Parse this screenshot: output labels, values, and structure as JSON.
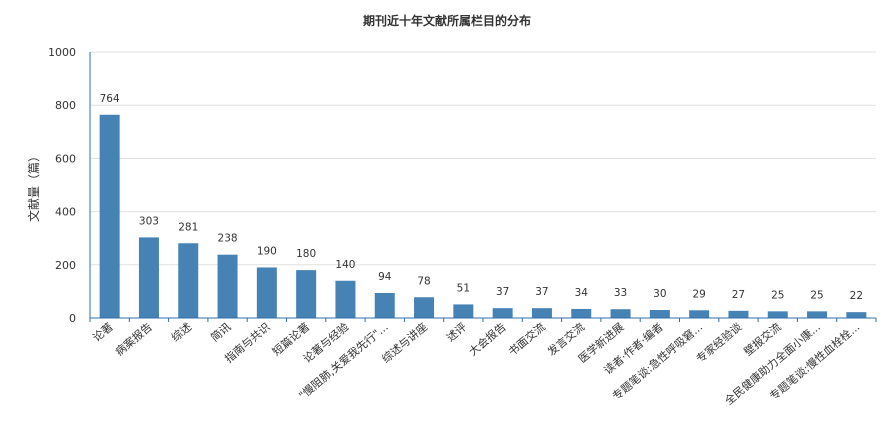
{
  "chart_data": {
    "type": "bar",
    "title": "期刊近十年文献所属栏目的分布",
    "xlabel": "",
    "ylabel": "文献量（篇）",
    "ylim": [
      0,
      1000
    ],
    "yticks": [
      0,
      200,
      400,
      600,
      800,
      1000
    ],
    "grid": true,
    "legend": "none",
    "bar_color": "#4682b4",
    "grid_color": "#e0e0e0",
    "axis_color": "#2f6fa8",
    "categories": [
      "论著",
      "病案报告",
      "综述",
      "简讯",
      "指南与共识",
      "短篇论著",
      "论著与经验",
      "\"慢阻肺,关爱我先行\"...",
      "综述与讲座",
      "述评",
      "大会报告",
      "书面交流",
      "发言交流",
      "医学新进展",
      "读者·作者·编者",
      "专题笔谈:急性呼吸窘...",
      "专家经验谈",
      "壁报交流",
      "全民健康助力全面小康...",
      "专题笔谈:慢性血栓栓..."
    ],
    "values": [
      764,
      303,
      281,
      238,
      190,
      180,
      140,
      94,
      78,
      51,
      37,
      37,
      34,
      33,
      30,
      29,
      27,
      25,
      25,
      22
    ]
  }
}
